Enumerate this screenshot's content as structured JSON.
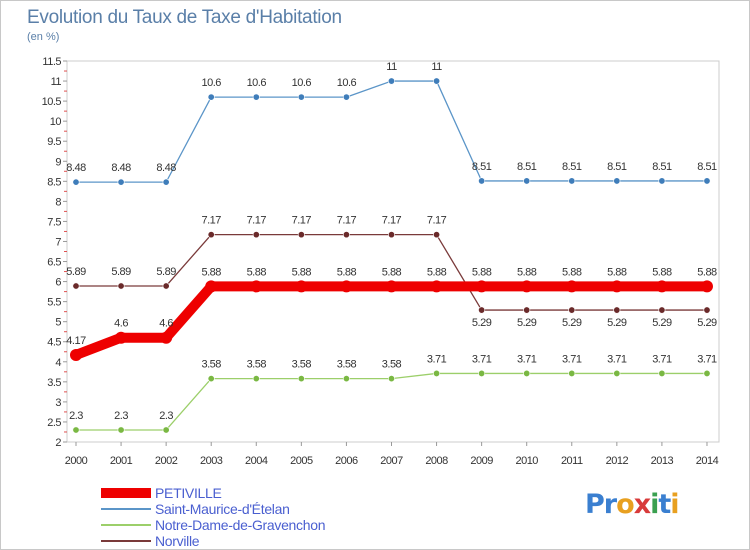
{
  "header": {
    "title": "Evolution du Taux de Taxe d'Habitation",
    "unit": "(en %)"
  },
  "logo": {
    "letters": [
      "P",
      "r",
      "o",
      "x",
      "i",
      "t",
      "i"
    ]
  },
  "chart_data": {
    "type": "line",
    "title": "Evolution du Taux de Taxe d'Habitation",
    "ylabel": "(en %)",
    "xlabel": "",
    "ylim": [
      2,
      11.5
    ],
    "yticks": [
      "2",
      "2.5",
      "3",
      "3.5",
      "4",
      "4.5",
      "5",
      "5.5",
      "6",
      "6.5",
      "7",
      "7.5",
      "8",
      "8.5",
      "9",
      "9.5",
      "10",
      "10.5",
      "11",
      "11.5"
    ],
    "x": [
      "2000",
      "2001",
      "2002",
      "2003",
      "2004",
      "2005",
      "2006",
      "2007",
      "2008",
      "2009",
      "2010",
      "2011",
      "2012",
      "2013",
      "2014"
    ],
    "series": [
      {
        "name": "Saint-Maurice-d'Ételan",
        "color": "#5b95c8",
        "dot": "#3f7dba",
        "values": [
          8.48,
          8.48,
          8.48,
          10.6,
          10.6,
          10.6,
          10.6,
          11,
          11,
          8.51,
          8.51,
          8.51,
          8.51,
          8.51,
          8.51
        ],
        "labels": [
          "8.48",
          "8.48",
          "8.48",
          "10.6",
          "10.6",
          "10.6",
          "10.6",
          "11",
          "11",
          "8.51",
          "8.51",
          "8.51",
          "8.51",
          "8.51",
          "8.51"
        ]
      },
      {
        "name": "Norville",
        "color": "#7a3a3a",
        "dot": "#6a2a2a",
        "values": [
          5.89,
          5.89,
          5.89,
          7.17,
          7.17,
          7.17,
          7.17,
          7.17,
          7.17,
          5.29,
          5.29,
          5.29,
          5.29,
          5.29,
          5.29
        ],
        "labels": [
          "5.89",
          "5.89",
          "5.89",
          "7.17",
          "7.17",
          "7.17",
          "7.17",
          "7.17",
          "7.17",
          "5.29",
          "5.29",
          "5.29",
          "5.29",
          "5.29",
          "5.29"
        ]
      },
      {
        "name": "Notre-Dame-de-Gravenchon",
        "color": "#9ccf6a",
        "dot": "#7ab843",
        "values": [
          2.3,
          2.3,
          2.3,
          3.58,
          3.58,
          3.58,
          3.58,
          3.58,
          3.71,
          3.71,
          3.71,
          3.71,
          3.71,
          3.71,
          3.71
        ],
        "labels": [
          "2.3",
          "2.3",
          "2.3",
          "3.58",
          "3.58",
          "3.58",
          "3.58",
          "3.58",
          "3.71",
          "3.71",
          "3.71",
          "3.71",
          "3.71",
          "3.71",
          "3.71"
        ]
      },
      {
        "name": "PETIVILLE",
        "color": "#ee0000",
        "dot": "#ee0000",
        "values": [
          4.17,
          4.6,
          4.6,
          5.88,
          5.88,
          5.88,
          5.88,
          5.88,
          5.88,
          5.88,
          5.88,
          5.88,
          5.88,
          5.88,
          5.88
        ],
        "labels": [
          "4.17",
          "4.6",
          "4.6",
          "5.88",
          "5.88",
          "5.88",
          "5.88",
          "5.88",
          "5.88",
          "5.88",
          "5.88",
          "5.88",
          "5.88",
          "5.88",
          "5.88"
        ]
      }
    ],
    "legend": [
      "PETIVILLE",
      "Saint-Maurice-d'Ételan",
      "Notre-Dame-de-Gravenchon",
      "Norville"
    ],
    "legend_position": "bottom-left"
  }
}
